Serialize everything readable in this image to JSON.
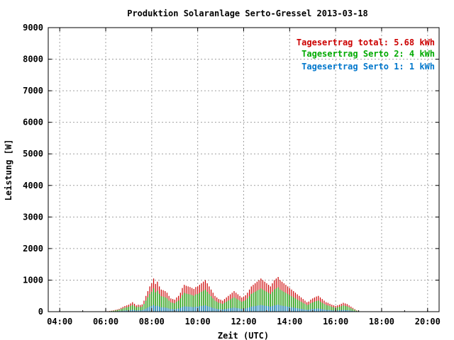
{
  "chart_data": {
    "type": "bar",
    "title": "Produktion Solaranlage Serto-Gressel 2013-03-18",
    "xlabel": "Zeit (UTC)",
    "ylabel": "Leistung [W]",
    "xlim": [
      "03:30",
      "20:30"
    ],
    "ylim": [
      0,
      9000
    ],
    "grid": true,
    "legend_position": "top-right",
    "x_ticks": [
      "04:00",
      "06:00",
      "08:00",
      "10:00",
      "12:00",
      "14:00",
      "16:00",
      "18:00",
      "20:00"
    ],
    "y_ticks": [
      0,
      1000,
      2000,
      3000,
      4000,
      5000,
      6000,
      7000,
      8000,
      9000
    ],
    "legend": [
      {
        "label": "Tagesertrag total: 5.68 kWh",
        "color": "#cc0000"
      },
      {
        "label": "Tagesertrag Serto 2: 4 kWh",
        "color": "#00aa00"
      },
      {
        "label": "Tagesertrag Serto 1: 1 kWh",
        "color": "#0077cc"
      }
    ],
    "colors": {
      "total": "#cc0000",
      "serto2": "#00aa00",
      "serto1": "#0077cc"
    },
    "series": [
      {
        "name": "Tagesertrag total: 5.68 kWh",
        "start_time": "06:00",
        "interval_minutes": 5,
        "values": [
          10,
          15,
          20,
          30,
          40,
          55,
          70,
          90,
          120,
          150,
          180,
          200,
          220,
          260,
          300,
          250,
          200,
          220,
          210,
          230,
          350,
          500,
          650,
          800,
          900,
          1050,
          880,
          950,
          800,
          700,
          680,
          650,
          600,
          500,
          420,
          400,
          380,
          450,
          500,
          600,
          750,
          850,
          820,
          800,
          780,
          750,
          720,
          780,
          800,
          850,
          900,
          950,
          1000,
          900,
          800,
          700,
          600,
          500,
          450,
          400,
          380,
          350,
          400,
          450,
          500,
          550,
          600,
          650,
          600,
          550,
          500,
          450,
          480,
          520,
          600,
          700,
          800,
          850,
          900,
          950,
          1000,
          1050,
          1000,
          950,
          900,
          850,
          800,
          900,
          1000,
          1050,
          1100,
          1000,
          950,
          900,
          850,
          800,
          750,
          700,
          650,
          600,
          550,
          500,
          450,
          400,
          350,
          300,
          320,
          380,
          420,
          450,
          480,
          500,
          450,
          400,
          350,
          300,
          280,
          250,
          220,
          200,
          180,
          200,
          220,
          250,
          280,
          260,
          240,
          200,
          160,
          120,
          80,
          40,
          10
        ]
      },
      {
        "name": "Tagesertrag Serto 2: 4 kWh",
        "start_time": "06:00",
        "interval_minutes": 5,
        "values": [
          7,
          10,
          14,
          21,
          28,
          38,
          49,
          63,
          84,
          105,
          126,
          140,
          154,
          182,
          210,
          175,
          140,
          154,
          147,
          161,
          245,
          350,
          455,
          560,
          630,
          735,
          616,
          665,
          560,
          490,
          476,
          455,
          420,
          350,
          294,
          280,
          266,
          315,
          350,
          420,
          525,
          595,
          574,
          560,
          546,
          525,
          504,
          546,
          560,
          595,
          630,
          665,
          700,
          630,
          560,
          490,
          420,
          350,
          315,
          280,
          266,
          245,
          280,
          315,
          350,
          385,
          420,
          455,
          420,
          385,
          350,
          315,
          336,
          364,
          420,
          490,
          560,
          595,
          630,
          665,
          700,
          735,
          700,
          665,
          630,
          595,
          560,
          630,
          700,
          735,
          770,
          700,
          665,
          630,
          595,
          560,
          525,
          490,
          455,
          420,
          385,
          350,
          315,
          280,
          245,
          210,
          224,
          266,
          294,
          315,
          336,
          350,
          315,
          280,
          245,
          210,
          196,
          175,
          154,
          140,
          126,
          140,
          154,
          175,
          196,
          182,
          168,
          140,
          112,
          84,
          56,
          28,
          7
        ]
      },
      {
        "name": "Tagesertrag Serto 1: 1 kWh",
        "start_time": "06:00",
        "interval_minutes": 5,
        "values": [
          2,
          3,
          4,
          6,
          8,
          11,
          14,
          18,
          24,
          30,
          36,
          40,
          44,
          52,
          60,
          50,
          40,
          44,
          42,
          46,
          70,
          100,
          130,
          160,
          180,
          210,
          176,
          190,
          160,
          140,
          136,
          130,
          120,
          100,
          84,
          80,
          76,
          90,
          100,
          120,
          150,
          170,
          164,
          160,
          156,
          150,
          144,
          156,
          160,
          170,
          180,
          190,
          200,
          180,
          160,
          140,
          120,
          100,
          90,
          80,
          76,
          70,
          80,
          90,
          100,
          110,
          120,
          130,
          120,
          110,
          100,
          90,
          96,
          104,
          120,
          140,
          160,
          170,
          180,
          190,
          200,
          210,
          200,
          190,
          180,
          170,
          160,
          180,
          200,
          210,
          220,
          200,
          190,
          180,
          170,
          160,
          150,
          140,
          130,
          120,
          110,
          100,
          90,
          80,
          70,
          60,
          64,
          76,
          84,
          90,
          96,
          100,
          90,
          80,
          70,
          60,
          56,
          50,
          44,
          40,
          36,
          40,
          44,
          50,
          56,
          52,
          48,
          40,
          32,
          24,
          16,
          8,
          2
        ]
      }
    ]
  }
}
